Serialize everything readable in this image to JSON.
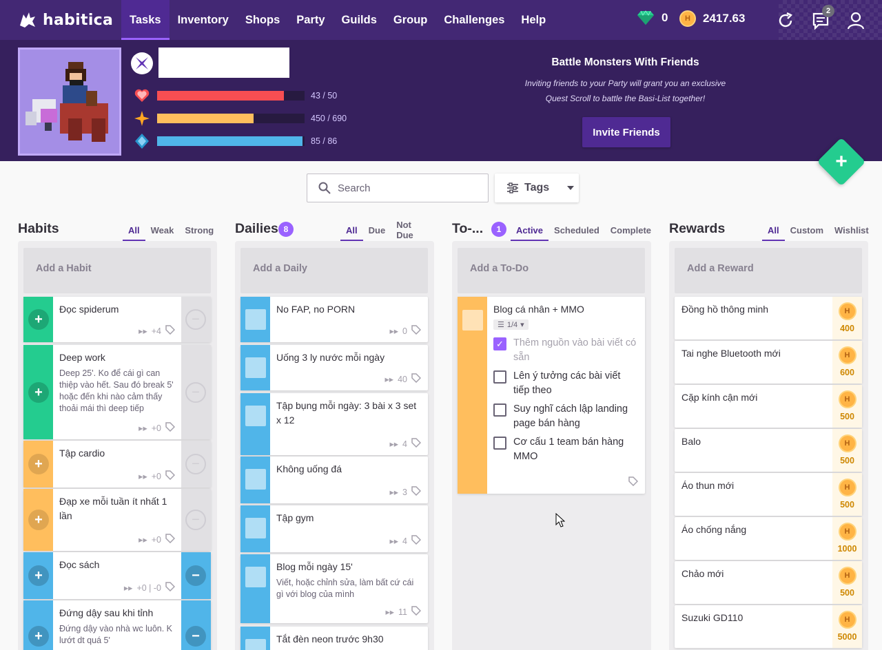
{
  "brand": {
    "name": "habitica"
  },
  "nav": {
    "items": [
      {
        "label": "Tasks",
        "active": true
      },
      {
        "label": "Inventory"
      },
      {
        "label": "Shops"
      },
      {
        "label": "Party"
      },
      {
        "label": "Guilds"
      },
      {
        "label": "Group"
      },
      {
        "label": "Challenges"
      },
      {
        "label": "Help"
      }
    ],
    "gems": "0",
    "gold": "2417.63",
    "notification_count": "2"
  },
  "stats": {
    "health": {
      "text": "43 / 50",
      "fraction": 0.86,
      "color": "#f74e52"
    },
    "experience": {
      "text": "450 / 690",
      "fraction": 0.652,
      "color": "#ffbe5d"
    },
    "mana": {
      "text": "85 / 86",
      "fraction": 0.988,
      "color": "#50b5e9"
    }
  },
  "promo": {
    "title": "Battle Monsters With Friends",
    "line1": "Inviting friends to your Party will grant you an exclusive",
    "line2": "Quest Scroll to battle the Basi-List together!",
    "button": "Invite Friends"
  },
  "search": {
    "placeholder": "Search"
  },
  "tags": {
    "label": "Tags"
  },
  "habits": {
    "title": "Habits",
    "filters": [
      "All",
      "Weak",
      "Strong"
    ],
    "add_placeholder": "Add a Habit",
    "items": [
      {
        "name": "Đọc spiderum",
        "notes": "",
        "meta": "+4",
        "color": "#24cc8f"
      },
      {
        "name": "Deep work",
        "notes": "Deep 25'. Ko để cái gì can thiệp vào hết. Sau đó break 5' hoặc đến khi nào cảm thấy thoải mái thì deep tiếp",
        "meta": "+0",
        "color": "#24cc8f"
      },
      {
        "name": "Tập cardio",
        "notes": "",
        "meta": "+0",
        "color": "#ffbe5d"
      },
      {
        "name": "Đạp xe mỗi tuần ít nhất 1 lần",
        "notes": "",
        "meta": "+0",
        "color": "#ffbe5d"
      },
      {
        "name": "Đọc sách",
        "notes": "",
        "meta": "+0 | -0",
        "color": "#50b5e9"
      },
      {
        "name": "Đứng dậy sau khi tỉnh",
        "notes": "Đứng dậy vào nhà wc luôn. K lướt dt quá 5'",
        "meta": "",
        "color": "#50b5e9"
      }
    ]
  },
  "dailies": {
    "title": "Dailies",
    "count": "8",
    "filters": [
      "All",
      "Due",
      "Not Due"
    ],
    "add_placeholder": "Add a Daily",
    "items": [
      {
        "name": "No FAP, no PORN",
        "notes": "",
        "meta": "0"
      },
      {
        "name": "Uống 3 ly nước mỗi ngày",
        "notes": "",
        "meta": "40"
      },
      {
        "name": "Tập bụng mỗi ngày: 3 bài x 3 set x 12",
        "notes": "",
        "meta": "4"
      },
      {
        "name": "Không uống đá",
        "notes": "",
        "meta": "3"
      },
      {
        "name": "Tập gym",
        "notes": "",
        "meta": "4"
      },
      {
        "name": "Blog mỗi ngày 15'",
        "notes": "Viết, hoặc chỉnh sửa, làm bất cứ cái gì với blog của mình",
        "meta": "11"
      },
      {
        "name": "Tắt đèn neon trước 9h30",
        "notes": "",
        "meta": ""
      }
    ]
  },
  "todos": {
    "title": "To-...",
    "count": "1",
    "filters": [
      "Active",
      "Scheduled",
      "Complete"
    ],
    "add_placeholder": "Add a To-Do",
    "item": {
      "name": "Blog cá nhân + MMO",
      "progress": "1/4",
      "checklist": [
        {
          "text": "Thêm nguồn vào bài viết có sẵn",
          "done": true
        },
        {
          "text": "Lên ý tưởng các bài viết tiếp theo",
          "done": false
        },
        {
          "text": "Suy nghĩ cách lập landing page bán hàng",
          "done": false
        },
        {
          "text": "Cơ cấu 1 team bán hàng MMO",
          "done": false
        }
      ]
    }
  },
  "rewards": {
    "title": "Rewards",
    "filters": [
      "All",
      "Custom",
      "Wishlist"
    ],
    "add_placeholder": "Add a Reward",
    "items": [
      {
        "name": "Đồng hồ thông minh",
        "price": "400"
      },
      {
        "name": "Tai nghe Bluetooth mới",
        "price": "600"
      },
      {
        "name": "Cặp kính cận mới",
        "price": "500"
      },
      {
        "name": "Balo",
        "price": "500"
      },
      {
        "name": "Áo thun mới",
        "price": "500"
      },
      {
        "name": "Áo chống nắng",
        "price": "1000"
      },
      {
        "name": "Chảo mới",
        "price": "500"
      },
      {
        "name": "Suzuki GD110",
        "price": "5000"
      }
    ]
  },
  "colors": {
    "brand": "#432874",
    "accent": "#9a62ff",
    "habit_good": "#24cc8f",
    "habit_neutral": "#ffbe5d",
    "habit_blue": "#50b5e9"
  }
}
